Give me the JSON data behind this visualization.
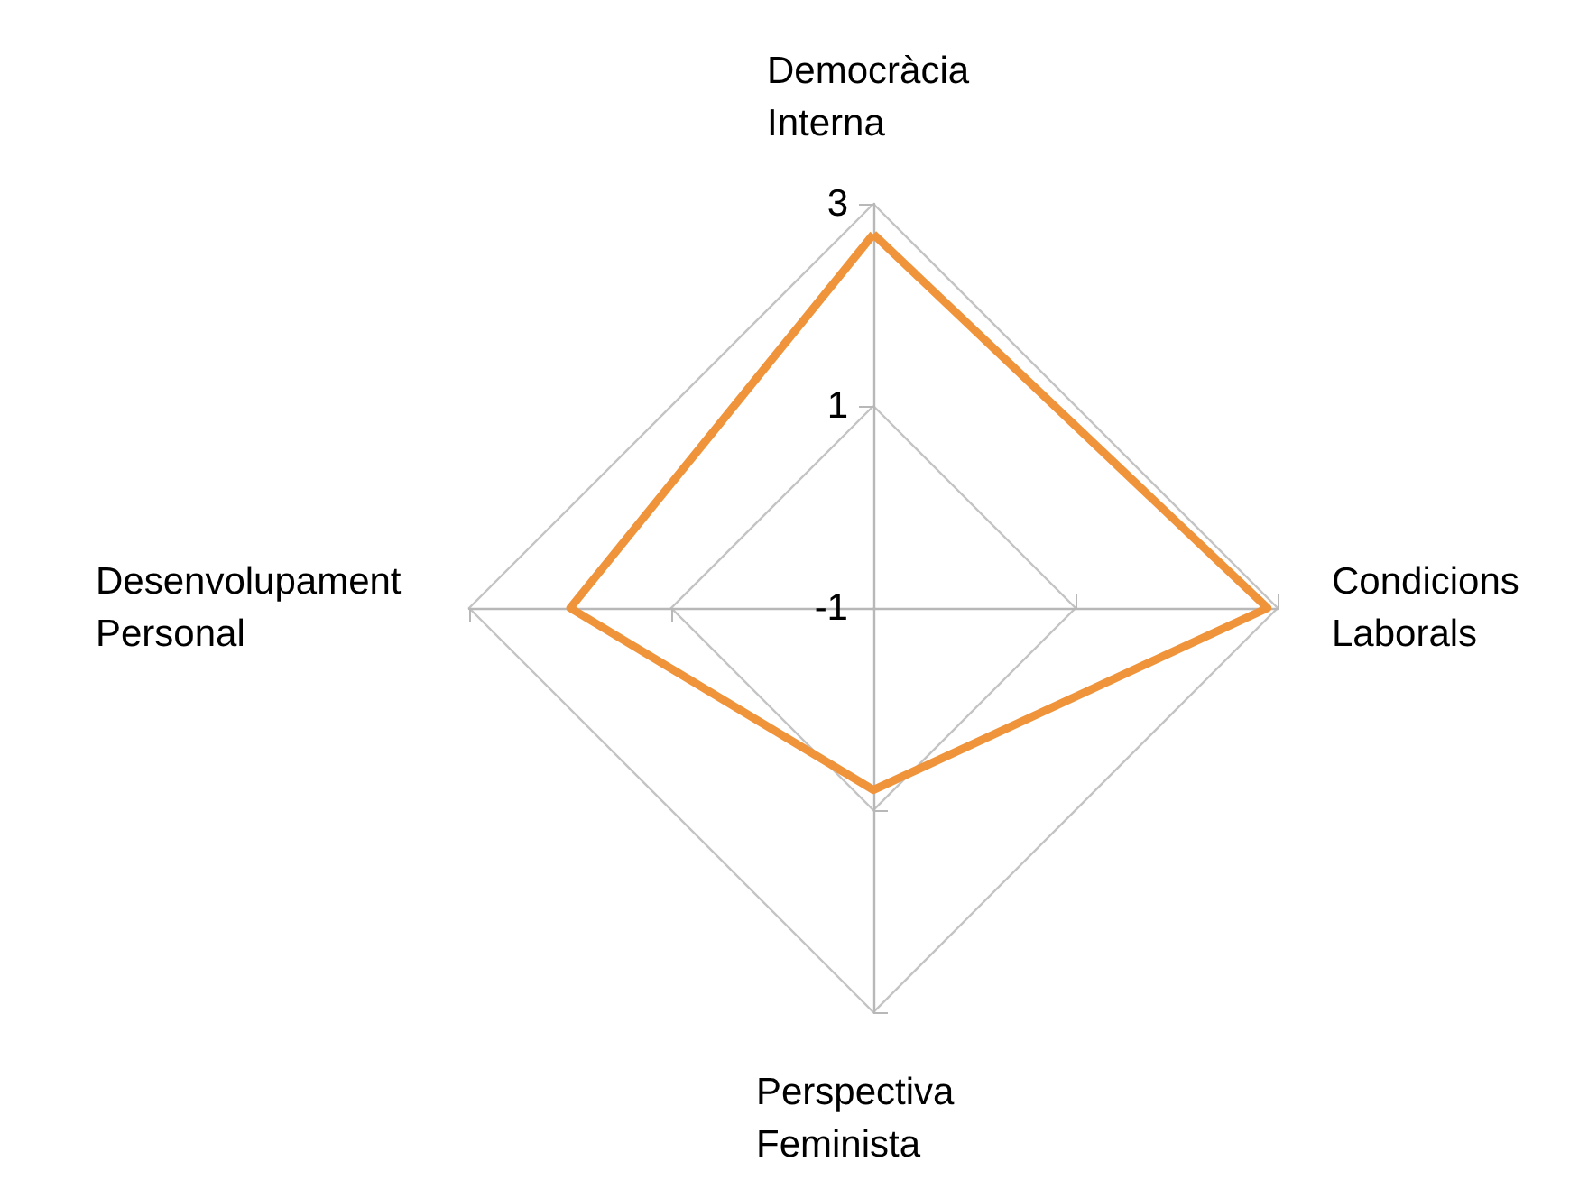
{
  "chart_data": {
    "type": "radar",
    "categories": [
      "Democràcia Interna",
      "Condicions Laborals",
      "Perspectiva Feminista",
      "Desenvolupament Personal"
    ],
    "series": [
      {
        "color": "#f0943c",
        "values": [
          2.7,
          2.9,
          0.8,
          2.0
        ]
      }
    ],
    "ylim": [
      -1,
      3
    ],
    "yticks": [
      -1,
      1,
      3
    ],
    "grid": true,
    "marker": "none",
    "line_style": "solid"
  }
}
